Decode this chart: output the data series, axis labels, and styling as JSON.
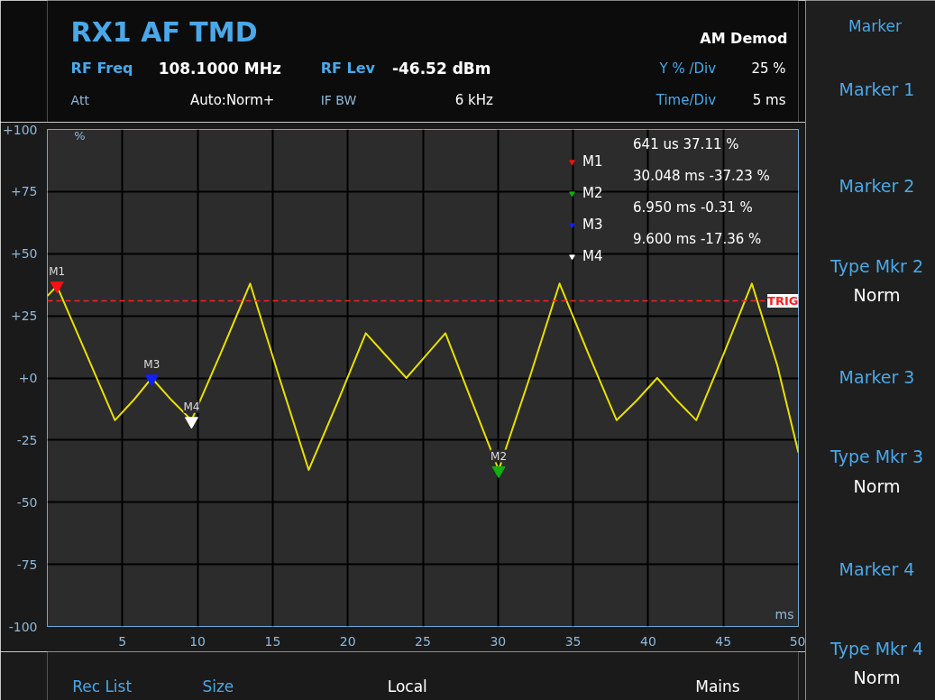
{
  "chart_data": {
    "type": "line",
    "title": "RX1 AF TMD",
    "xlabel": "ms",
    "ylabel": "%",
    "x": [
      0,
      0.641,
      2.57,
      4.5,
      5.73,
      6.95,
      8.28,
      9.6,
      11.55,
      13.5,
      15.45,
      17.4,
      19.3,
      21.2,
      22.55,
      23.9,
      25.2,
      26.5,
      28.3,
      30.048,
      32.1,
      34.1,
      36.0,
      37.9,
      39.25,
      40.6,
      41.9,
      43.2,
      45.05,
      46.9,
      48.6,
      50
    ],
    "series": [
      {
        "color": "#e8e000",
        "marker": "none",
        "values": [
          33,
          37,
          10,
          -17,
          -9,
          0,
          -9,
          -17,
          10,
          38,
          0,
          -37,
          -10,
          18,
          9,
          0,
          9,
          18,
          -10,
          -37,
          0,
          38,
          10,
          -17,
          -9,
          0,
          -9,
          -17,
          10,
          38,
          5,
          -30
        ]
      },
      {
        "type": "scatter",
        "marker": "triangle",
        "name": "M1",
        "color": "#ff1010",
        "x": [
          0.641
        ],
        "values": [
          37.11
        ]
      },
      {
        "type": "scatter",
        "marker": "triangle",
        "name": "M2",
        "color": "#10b010",
        "x": [
          30.048
        ],
        "values": [
          -37.23
        ]
      },
      {
        "type": "scatter",
        "marker": "triangle",
        "name": "M3",
        "color": "#1020ff",
        "x": [
          6.95
        ],
        "values": [
          -0.31
        ]
      },
      {
        "type": "scatter",
        "marker": "triangle",
        "name": "M4",
        "color": "#ffffff",
        "x": [
          9.6
        ],
        "values": [
          -17.36
        ]
      }
    ],
    "xlim": [
      0,
      50
    ],
    "ylim": [
      -100,
      100
    ],
    "xticks": [
      5,
      10,
      15,
      20,
      25,
      30,
      35,
      40,
      45,
      50
    ],
    "yticks": [
      {
        "value": -100,
        "label": "-100"
      },
      {
        "value": -75,
        "label": "-75"
      },
      {
        "value": -50,
        "label": "-50"
      },
      {
        "value": -25,
        "label": "-25"
      },
      {
        "value": 0,
        "label": "+0"
      },
      {
        "value": 25,
        "label": "+25"
      },
      {
        "value": 50,
        "label": "+50"
      },
      {
        "value": 75,
        "label": "+75"
      },
      {
        "value": 100,
        "label": "+100"
      }
    ],
    "grid": true,
    "legend": "top right",
    "ref_lines": [
      {
        "axis": "y",
        "value": 31,
        "label": "TRIG",
        "color": "#ff2020",
        "line_style": "dashed"
      }
    ],
    "annotations": [
      "AM Demod",
      "RF Freq",
      "108.1000 MHz",
      "RF Lev",
      "-46.52 dBm",
      "Y % /Div",
      "25 %",
      "Att",
      "Auto:Norm+",
      "IF BW",
      "6 kHz",
      "Time/Div",
      "5 ms",
      "641 us 37.11 %",
      "30.048 ms -37.23 %",
      "6.950 ms -0.31 %",
      "9.600 ms -17.36 %",
      "Marker",
      "Marker 1",
      "Marker 2",
      "Type Mkr 2",
      "Norm",
      "Marker 3",
      "Type Mkr 3",
      "Norm",
      "Marker 4",
      "Type Mkr 4",
      "Norm",
      "Rec List",
      "Size",
      "Local",
      "Mains"
    ]
  }
}
